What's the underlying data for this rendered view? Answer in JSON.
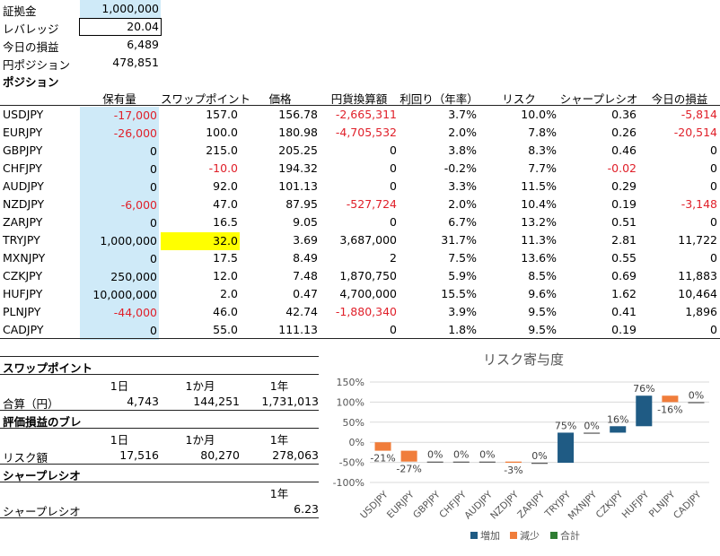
{
  "top": {
    "margin_label": "証拠金",
    "margin_value": "1,000,000",
    "leverage_label": "レバレッジ",
    "leverage_value": "20.04",
    "pnl_label": "今日の損益",
    "pnl_value": "6,489",
    "yen_label": "円ポジション",
    "yen_value": "478,851"
  },
  "positions": {
    "section_title": "ポジション",
    "headers": [
      "保有量",
      "スワップポイント",
      "価格",
      "円貨換算額",
      "利回り（年率）",
      "リスク",
      "シャープレシオ",
      "今日の損益"
    ],
    "rows": [
      {
        "pair": "USDJPY",
        "qty": "-17,000",
        "swap": "157.0",
        "price": "156.78",
        "yen": "-2,665,311",
        "yield": "3.7%",
        "risk": "10.0%",
        "sharpe": "0.36",
        "pnl": "-5,814"
      },
      {
        "pair": "EURJPY",
        "qty": "-26,000",
        "swap": "100.0",
        "price": "180.98",
        "yen": "-4,705,532",
        "yield": "2.0%",
        "risk": "7.8%",
        "sharpe": "0.26",
        "pnl": "-20,514"
      },
      {
        "pair": "GBPJPY",
        "qty": "0",
        "swap": "215.0",
        "price": "205.25",
        "yen": "0",
        "yield": "3.8%",
        "risk": "8.3%",
        "sharpe": "0.46",
        "pnl": "0"
      },
      {
        "pair": "CHFJPY",
        "qty": "0",
        "swap": "-10.0",
        "price": "194.32",
        "yen": "0",
        "yield": "-0.2%",
        "risk": "7.7%",
        "sharpe": "-0.02",
        "pnl": "0"
      },
      {
        "pair": "AUDJPY",
        "qty": "0",
        "swap": "92.0",
        "price": "101.13",
        "yen": "0",
        "yield": "3.3%",
        "risk": "11.5%",
        "sharpe": "0.29",
        "pnl": "0"
      },
      {
        "pair": "NZDJPY",
        "qty": "-6,000",
        "swap": "47.0",
        "price": "87.95",
        "yen": "-527,724",
        "yield": "2.0%",
        "risk": "10.4%",
        "sharpe": "0.19",
        "pnl": "-3,148"
      },
      {
        "pair": "ZARJPY",
        "qty": "0",
        "swap": "16.5",
        "price": "9.05",
        "yen": "0",
        "yield": "6.7%",
        "risk": "13.2%",
        "sharpe": "0.51",
        "pnl": "0"
      },
      {
        "pair": "TRYJPY",
        "qty": "1,000,000",
        "swap": "32.0",
        "price": "3.69",
        "yen": "3,687,000",
        "yield": "31.7%",
        "risk": "11.3%",
        "sharpe": "2.81",
        "pnl": "11,722"
      },
      {
        "pair": "MXNJPY",
        "qty": "0",
        "swap": "17.5",
        "price": "8.49",
        "yen": "2",
        "yield": "7.5%",
        "risk": "13.6%",
        "sharpe": "0.55",
        "pnl": "0"
      },
      {
        "pair": "CZKJPY",
        "qty": "250,000",
        "swap": "12.0",
        "price": "7.48",
        "yen": "1,870,750",
        "yield": "5.9%",
        "risk": "8.5%",
        "sharpe": "0.69",
        "pnl": "11,883"
      },
      {
        "pair": "HUFJPY",
        "qty": "10,000,000",
        "swap": "2.0",
        "price": "0.47",
        "yen": "4,700,000",
        "yield": "15.5%",
        "risk": "9.6%",
        "sharpe": "1.62",
        "pnl": "10,464"
      },
      {
        "pair": "PLNJPY",
        "qty": "-44,000",
        "swap": "46.0",
        "price": "42.74",
        "yen": "-1,880,340",
        "yield": "3.9%",
        "risk": "9.5%",
        "sharpe": "0.41",
        "pnl": "1,896"
      },
      {
        "pair": "CADJPY",
        "qty": "0",
        "swap": "55.0",
        "price": "111.13",
        "yen": "0",
        "yield": "1.8%",
        "risk": "9.5%",
        "sharpe": "0.19",
        "pnl": "0"
      }
    ]
  },
  "swap": {
    "title": "スワップポイント",
    "periods": [
      "1日",
      "1か月",
      "1年"
    ],
    "row_label": "合算（円）",
    "values": [
      "4,743",
      "144,251",
      "1,731,013"
    ]
  },
  "pnl_var": {
    "title": "評価損益のブレ",
    "periods": [
      "1日",
      "1か月",
      "1年"
    ],
    "row_label": "リスク額",
    "values": [
      "17,516",
      "80,270",
      "278,063"
    ]
  },
  "sharpe": {
    "title": "シャープレシオ",
    "period": "1年",
    "row_label": "シャープレシオ",
    "value": "6.23"
  },
  "chart_data": {
    "type": "waterfall",
    "title": "リスク寄与度",
    "categories": [
      "USDJPY",
      "EURJPY",
      "GBPJPY",
      "CHFJPY",
      "AUDJPY",
      "NZDJPY",
      "ZARJPY",
      "TRYJPY",
      "MXNJPY",
      "CZKJPY",
      "HUFJPY",
      "PLNJPY",
      "CADJPY"
    ],
    "values": [
      -21,
      -27,
      0,
      0,
      0,
      -3,
      0,
      75,
      0,
      16,
      76,
      -16,
      0
    ],
    "labels": [
      "-21%",
      "-27%",
      "0%",
      "0%",
      "0%",
      "-3%",
      "0%",
      "75%",
      "0%",
      "16%",
      "76%",
      "-16%",
      "0%"
    ],
    "ylim": [
      -100,
      150
    ],
    "yticks": [
      "150%",
      "100%",
      "50%",
      "0%",
      "-50%",
      "-100%"
    ],
    "legend": [
      "増加",
      "減少",
      "合計"
    ],
    "legend_position": "bottom",
    "colors": {
      "increase": "#1f5b84",
      "decrease": "#f07d3b",
      "total": "#2e7d32"
    }
  }
}
